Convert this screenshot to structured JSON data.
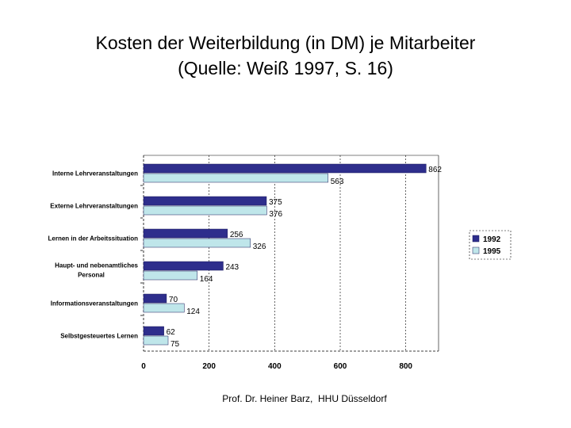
{
  "slide": {
    "title_line1": "Kosten der Weiterbildung (in DM) je Mitarbeiter",
    "title_line2": "(Quelle: Weiß 1997, S. 16)",
    "footer": "Prof. Dr. Heiner Barz,  HHU Düsseldorf"
  },
  "colors": {
    "series_1992": "#2e2e8c",
    "series_1995": "#bfe6ea",
    "axis": "#000000",
    "grid": "#000000"
  },
  "chart_data": {
    "type": "bar",
    "orientation": "horizontal",
    "title": "Kosten der Weiterbildung (in DM) je Mitarbeiter",
    "xlabel": "",
    "ylabel": "",
    "xlim": [
      0,
      900
    ],
    "xticks": [
      0,
      200,
      400,
      600,
      800
    ],
    "xtick_labels": [
      "0",
      "200",
      "400",
      "600",
      "800"
    ],
    "grid": true,
    "legend_position": "right",
    "categories": [
      [
        "Interne Lehrveranstaltungen"
      ],
      [
        "Externe Lehrveranstaltungen"
      ],
      [
        "Lernen in der Arbeitssituation"
      ],
      [
        "Haupt- und nebenamtliches",
        "Personal"
      ],
      [
        "Informationsveranstaltungen"
      ],
      [
        "Selbstgesteuertes Lernen"
      ]
    ],
    "series": [
      {
        "name": "1992",
        "values": [
          862,
          375,
          256,
          243,
          70,
          62
        ]
      },
      {
        "name": "1995",
        "values": [
          563,
          376,
          326,
          164,
          124,
          75
        ]
      }
    ]
  }
}
